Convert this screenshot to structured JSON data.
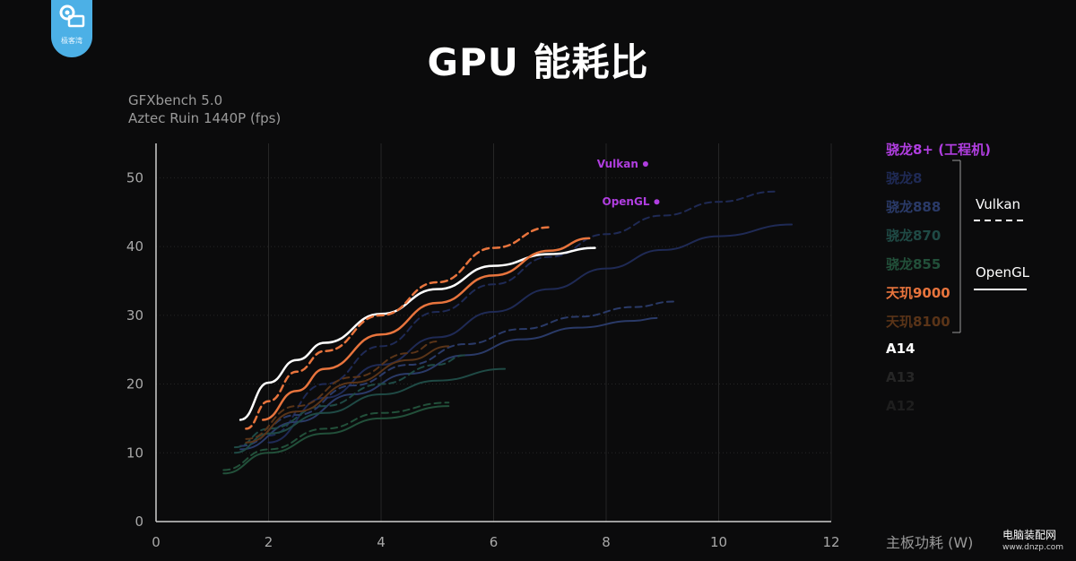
{
  "header": {
    "title": "GPU 能耗比",
    "subtitle_line1": "GFXbench 5.0",
    "subtitle_line2": "Aztec Ruin 1440P (fps)",
    "logo_text": "极客湾"
  },
  "watermark": {
    "text": "电脑装配网",
    "url": "www.dnzp.com"
  },
  "legend": {
    "items": [
      {
        "label": "骁龙8+ (工程机)",
        "color": "#b03ee0"
      },
      {
        "label": "骁龙8",
        "color": "#1f2a55"
      },
      {
        "label": "骁龙888",
        "color": "#2a3a68"
      },
      {
        "label": "骁龙870",
        "color": "#1f4a45"
      },
      {
        "label": "骁龙855",
        "color": "#22503a"
      },
      {
        "label": "天玑9000",
        "color": "#e8743d"
      },
      {
        "label": "天玑8100",
        "color": "#5a3418"
      },
      {
        "label": "A14",
        "color": "#ffffff"
      },
      {
        "label": "A13",
        "color": "#262626"
      },
      {
        "label": "A12",
        "color": "#1e1e1e"
      }
    ],
    "vulkan_label": "Vulkan",
    "opengl_label": "OpenGL"
  },
  "chart_data": {
    "type": "line",
    "title": "GPU 能耗比",
    "subtitle": "GFXbench 5.0 Aztec Ruin 1440P (fps)",
    "xlabel": "主板功耗 (W)",
    "ylabel": "",
    "xlim": [
      0,
      12
    ],
    "ylim": [
      0,
      55
    ],
    "xticks": [
      0,
      2,
      4,
      6,
      8,
      10,
      12
    ],
    "yticks": [
      0,
      10,
      20,
      30,
      40,
      50
    ],
    "grid": true,
    "legend_position": "right",
    "annotations": [
      {
        "text": "Vulkan",
        "x": 8.7,
        "y": 52,
        "color": "#b03ee0"
      },
      {
        "text": "OpenGL",
        "x": 8.9,
        "y": 46.5,
        "color": "#b03ee0"
      }
    ],
    "series": [
      {
        "name": "A14",
        "api": "OpenGL",
        "color": "#ffffff",
        "x": [
          1.5,
          2.0,
          2.5,
          3.0,
          4.0,
          5.0,
          6.0,
          7.0,
          7.8
        ],
        "y": [
          14.8,
          20.2,
          23.5,
          26.0,
          30.2,
          33.8,
          37.2,
          38.9,
          39.8
        ]
      },
      {
        "name": "天玑9000",
        "api": "Vulkan",
        "color": "#e8743d",
        "x": [
          1.6,
          2.0,
          2.5,
          3.0,
          4.0,
          5.0,
          6.0,
          7.0
        ],
        "y": [
          13.5,
          17.5,
          21.8,
          24.8,
          30.0,
          34.8,
          39.8,
          42.8
        ]
      },
      {
        "name": "天玑9000",
        "api": "OpenGL",
        "color": "#e8743d",
        "x": [
          1.9,
          2.5,
          3.0,
          4.0,
          5.0,
          6.0,
          7.0,
          7.7
        ],
        "y": [
          14.8,
          19.0,
          22.2,
          27.2,
          31.8,
          35.8,
          39.4,
          41.2
        ]
      },
      {
        "name": "骁龙8",
        "api": "Vulkan",
        "color": "#1f2a55",
        "x": [
          2.0,
          3.0,
          4.0,
          5.0,
          6.0,
          7.0,
          8.0,
          9.0,
          10.0,
          11.0
        ],
        "y": [
          12.5,
          20.0,
          25.5,
          30.5,
          34.5,
          38.5,
          41.8,
          44.5,
          46.5,
          48.0
        ]
      },
      {
        "name": "骁龙8",
        "api": "OpenGL",
        "color": "#1f2a55",
        "x": [
          2.0,
          3.0,
          4.0,
          5.0,
          6.0,
          7.0,
          8.0,
          9.0,
          10.0,
          11.3
        ],
        "y": [
          11.5,
          18.0,
          22.8,
          26.8,
          30.5,
          33.8,
          36.8,
          39.5,
          41.5,
          43.2
        ]
      },
      {
        "name": "骁龙888",
        "api": "Vulkan",
        "color": "#2a3a68",
        "x": [
          1.5,
          2.5,
          3.5,
          4.5,
          5.5,
          6.5,
          7.5,
          8.5,
          9.2
        ],
        "y": [
          11.0,
          15.5,
          19.8,
          22.8,
          25.8,
          28.0,
          29.8,
          31.2,
          32.0
        ]
      },
      {
        "name": "骁龙888",
        "api": "OpenGL",
        "color": "#2a3a68",
        "x": [
          1.5,
          2.5,
          3.5,
          4.5,
          5.5,
          6.5,
          7.5,
          8.5,
          8.9
        ],
        "y": [
          10.5,
          14.5,
          18.5,
          21.5,
          24.2,
          26.5,
          28.2,
          29.2,
          29.6
        ]
      },
      {
        "name": "骁龙870",
        "api": "Vulkan",
        "color": "#1f4a45",
        "x": [
          1.4,
          2.0,
          3.0,
          4.0,
          5.0,
          5.5
        ],
        "y": [
          10.8,
          13.5,
          16.8,
          20.0,
          22.8,
          24.2
        ]
      },
      {
        "name": "骁龙870",
        "api": "OpenGL",
        "color": "#1f4a45",
        "x": [
          1.4,
          2.0,
          3.0,
          4.0,
          5.0,
          6.2
        ],
        "y": [
          10.0,
          12.8,
          15.8,
          18.5,
          20.5,
          22.2
        ]
      },
      {
        "name": "骁龙855",
        "api": "Vulkan",
        "color": "#22503a",
        "x": [
          1.2,
          2.0,
          3.0,
          4.0,
          5.2
        ],
        "y": [
          7.5,
          10.5,
          13.5,
          15.8,
          17.3
        ]
      },
      {
        "name": "骁龙855",
        "api": "OpenGL",
        "color": "#22503a",
        "x": [
          1.2,
          2.0,
          3.0,
          4.0,
          5.2
        ],
        "y": [
          7.0,
          10.0,
          12.8,
          15.0,
          16.8
        ]
      },
      {
        "name": "天玑8100",
        "api": "Vulkan",
        "color": "#5a3418",
        "x": [
          1.6,
          2.5,
          3.5,
          4.5,
          5.0
        ],
        "y": [
          12.0,
          16.8,
          21.0,
          24.5,
          26.2
        ]
      },
      {
        "name": "天玑8100",
        "api": "OpenGL",
        "color": "#5a3418",
        "x": [
          1.6,
          2.5,
          3.5,
          4.5,
          5.2
        ],
        "y": [
          11.5,
          16.0,
          20.2,
          23.5,
          25.5
        ]
      }
    ]
  }
}
